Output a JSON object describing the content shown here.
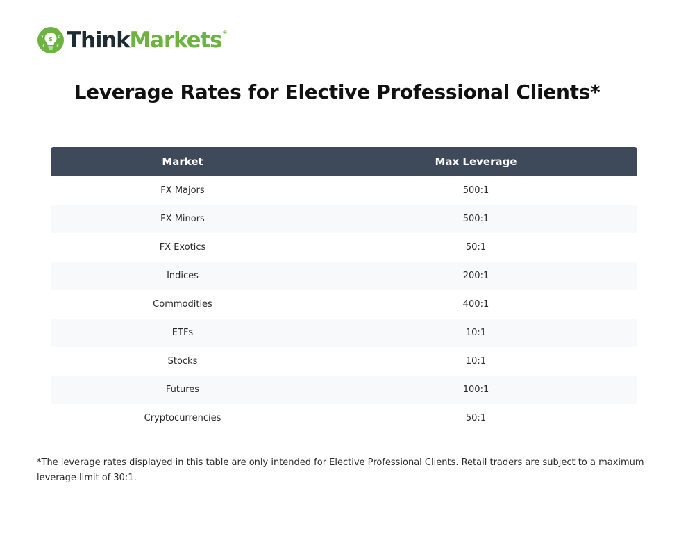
{
  "header": {
    "logo_text_think": "Think",
    "logo_text_markets": "Markets",
    "logo_registered": "®",
    "brand_colors": {
      "dark": "#1f2b33",
      "green": "#6cb33f"
    }
  },
  "page": {
    "title": "Leverage Rates for Elective Professional Clients*"
  },
  "table": {
    "header_color": "#3e4a5a",
    "columns": [
      "Market",
      "Max Leverage"
    ],
    "rows": [
      {
        "market": "FX Majors",
        "max_leverage": "500:1"
      },
      {
        "market": "FX Minors",
        "max_leverage": "500:1"
      },
      {
        "market": "FX Exotics",
        "max_leverage": "50:1"
      },
      {
        "market": "Indices",
        "max_leverage": "200:1"
      },
      {
        "market": "Commodities",
        "max_leverage": "400:1"
      },
      {
        "market": "ETFs",
        "max_leverage": "10:1"
      },
      {
        "market": "Stocks",
        "max_leverage": "10:1"
      },
      {
        "market": "Futures",
        "max_leverage": "100:1"
      },
      {
        "market": "Cryptocurrencies",
        "max_leverage": "50:1"
      }
    ]
  },
  "footnote": {
    "text": "*The leverage rates displayed in this table are only intended for Elective Professional Clients. Retail traders are subject to a maximum leverage limit of 30:1."
  }
}
